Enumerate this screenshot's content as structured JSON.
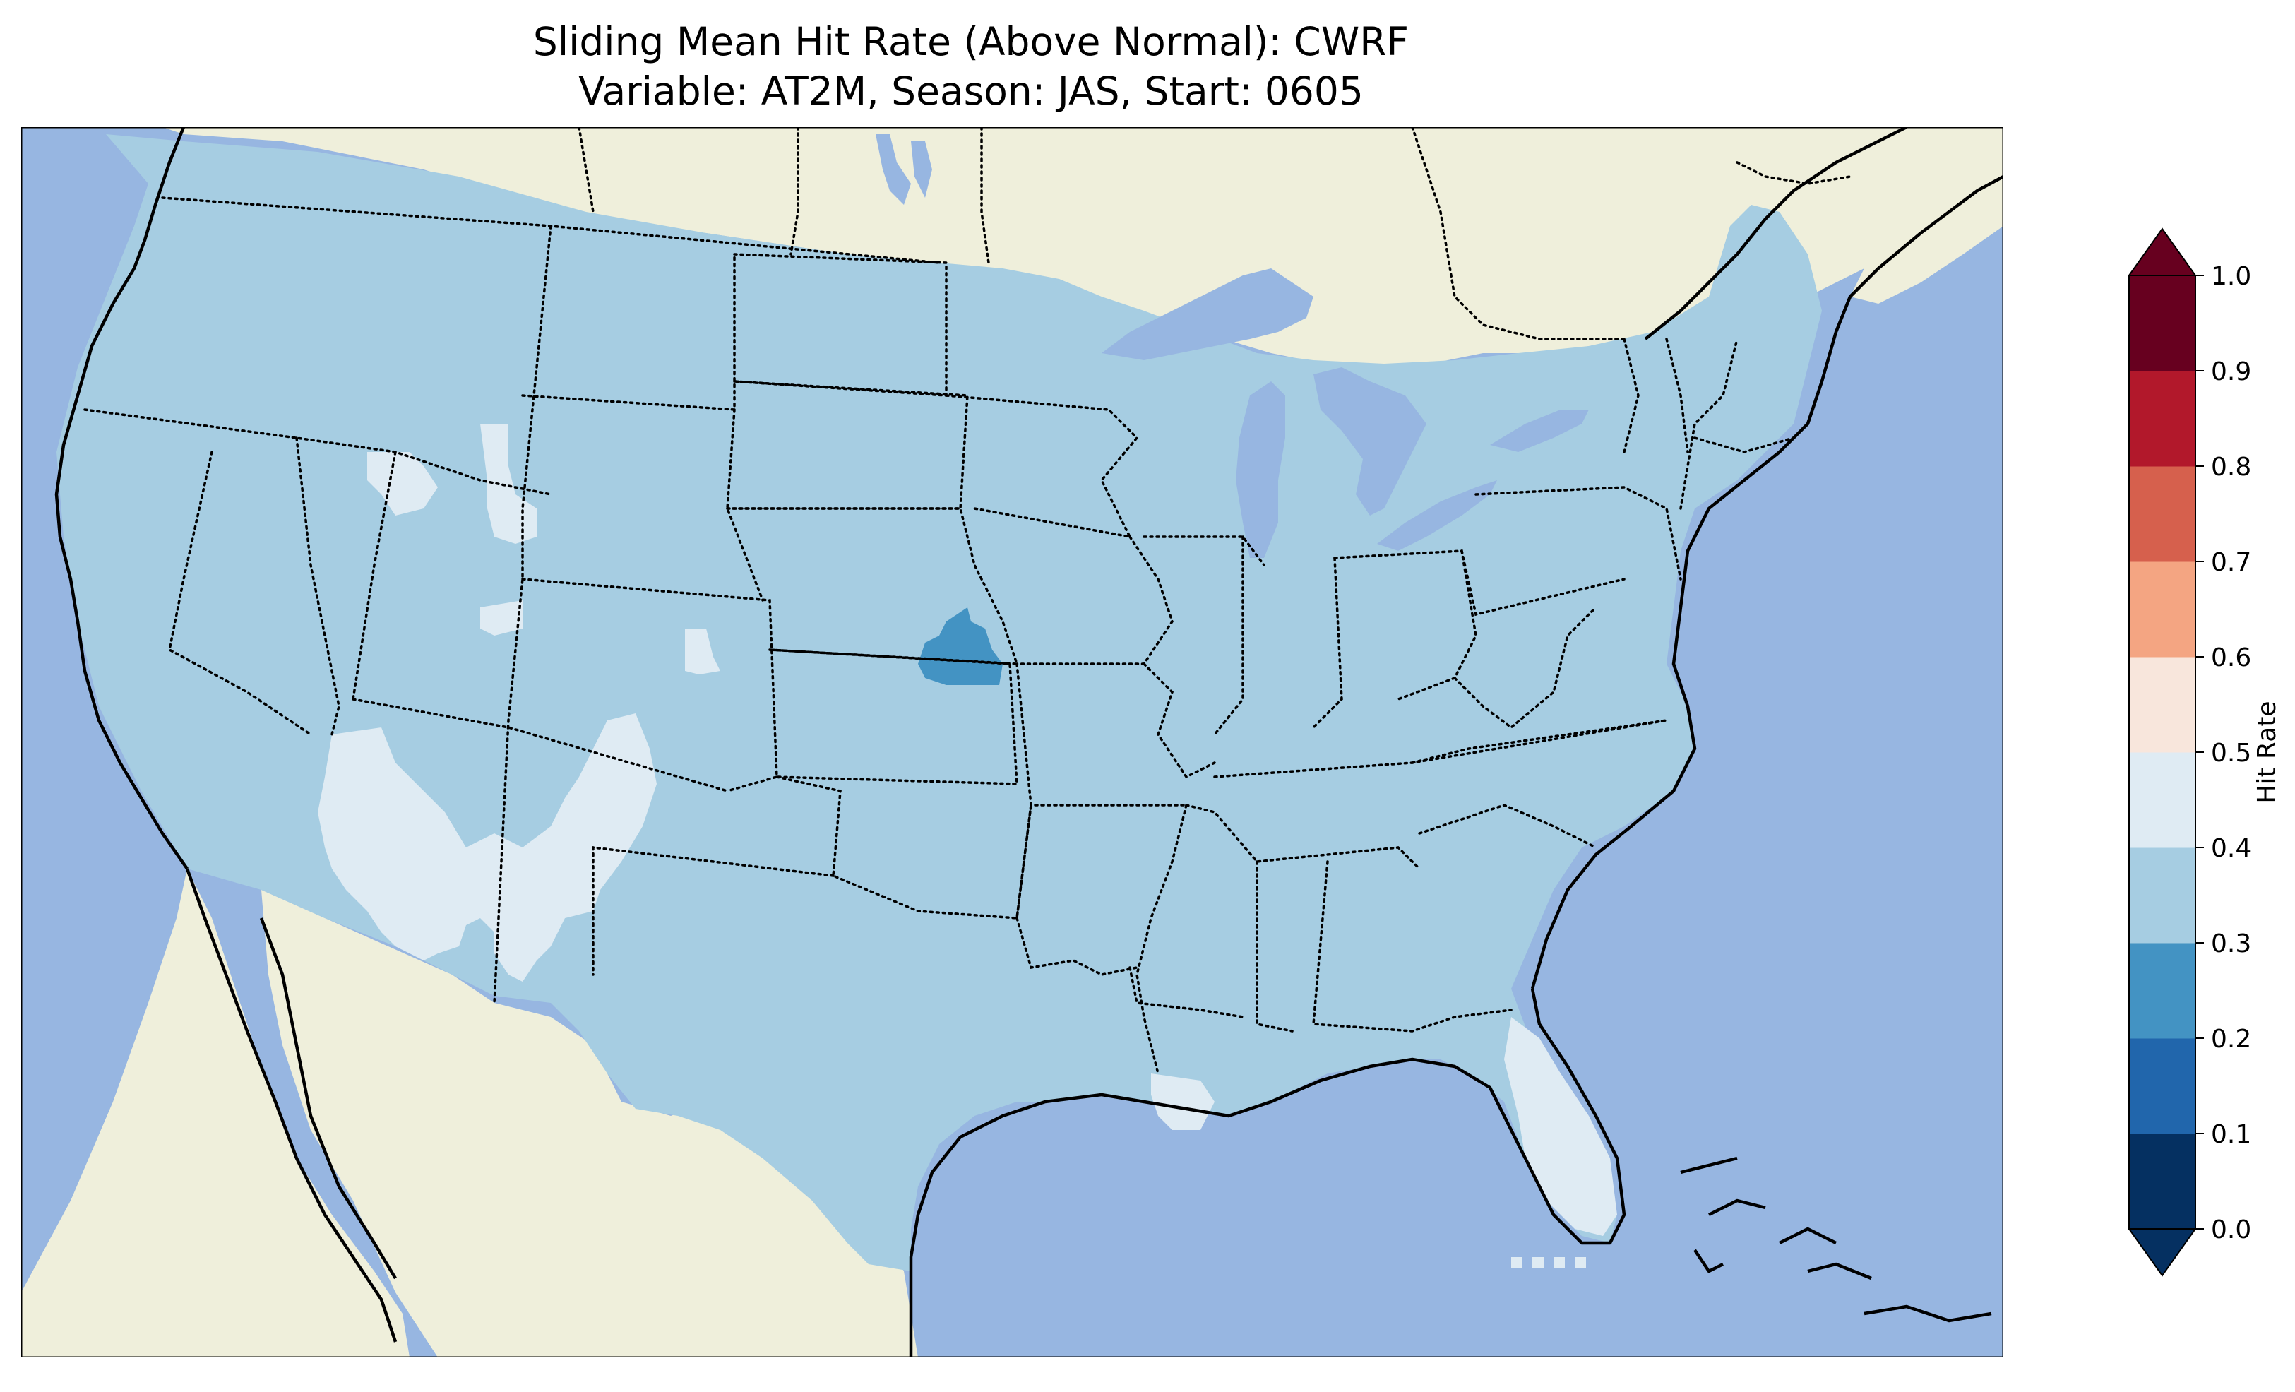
{
  "title": {
    "line1": "Sliding Mean Hit Rate (Above Normal): CWRF",
    "line2": "Variable: AT2M, Season: JAS, Start: 0605"
  },
  "map": {
    "projection": "lambert-conformal",
    "region": "contiguous-united-states",
    "ocean_color": "#97b6e1",
    "land_color": "#efefdb",
    "lake_color": "#97b6e1",
    "features": [
      "coastlines",
      "state-borders",
      "country-borders",
      "lakes"
    ]
  },
  "colorbar": {
    "label": "Hit Rate",
    "ticks": [
      "0.0",
      "0.1",
      "0.2",
      "0.3",
      "0.4",
      "0.5",
      "0.6",
      "0.7",
      "0.8",
      "0.9",
      "1.0"
    ],
    "bins": [
      {
        "range": [
          0.0,
          0.1
        ],
        "color": "#053061"
      },
      {
        "range": [
          0.1,
          0.2
        ],
        "color": "#2166ac"
      },
      {
        "range": [
          0.2,
          0.3
        ],
        "color": "#4393c3"
      },
      {
        "range": [
          0.3,
          0.4
        ],
        "color": "#a6cde2"
      },
      {
        "range": [
          0.4,
          0.5
        ],
        "color": "#dfebf3"
      },
      {
        "range": [
          0.5,
          0.6
        ],
        "color": "#f8e6dc"
      },
      {
        "range": [
          0.6,
          0.7
        ],
        "color": "#f4a582"
      },
      {
        "range": [
          0.7,
          0.8
        ],
        "color": "#d6604d"
      },
      {
        "range": [
          0.8,
          0.9
        ],
        "color": "#b2182b"
      },
      {
        "range": [
          0.9,
          1.0
        ],
        "color": "#67001f"
      }
    ],
    "extend": "both",
    "under_color": "#053061",
    "over_color": "#67001f"
  },
  "field": {
    "dominant_bin": "0.3-0.4",
    "regions": [
      {
        "name": "contiguous-us",
        "bin": "0.3-0.4"
      },
      {
        "name": "southwest-arizona-new-mexico",
        "bin": "0.4-0.5"
      },
      {
        "name": "florida-peninsula",
        "bin": "0.4-0.5"
      },
      {
        "name": "southern-louisiana",
        "bin": "0.4-0.5"
      },
      {
        "name": "idaho-utah-patches",
        "bin": "0.4-0.5"
      },
      {
        "name": "kansas-east",
        "bin": "0.2-0.3"
      }
    ]
  }
}
